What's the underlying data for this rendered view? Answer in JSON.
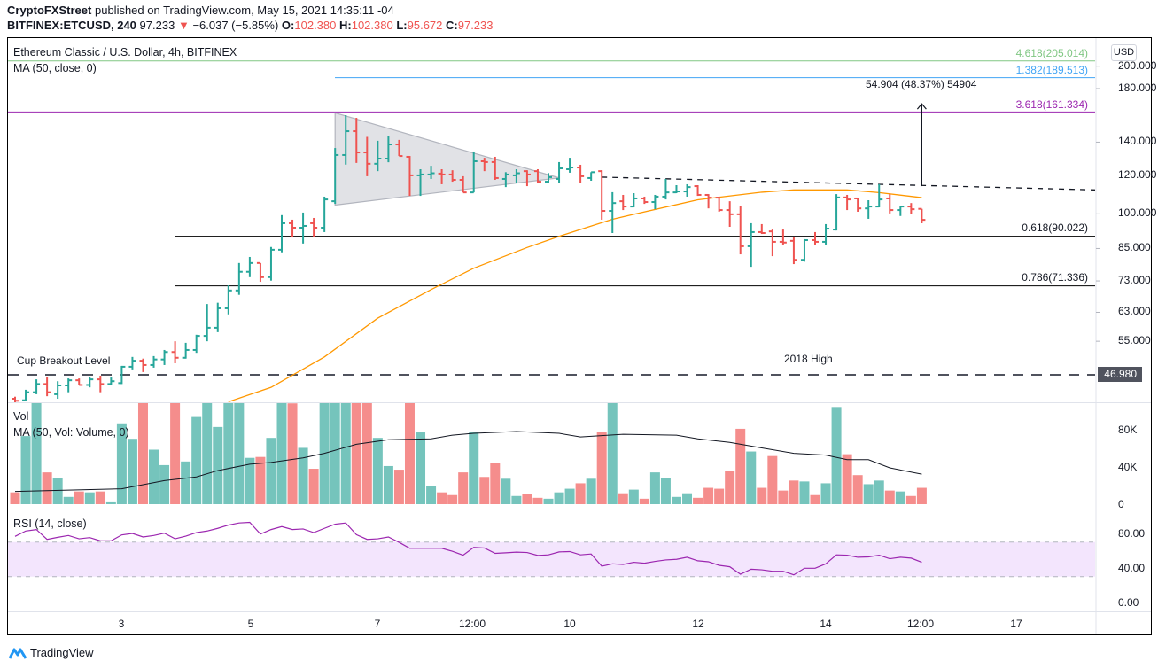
{
  "header": {
    "publisher": "CryptoFXStreet",
    "published_text": "published on TradingView.com, May 15, 2021 14:35:11 -04",
    "symbol": "BITFINEX:ETCUSD, 240",
    "last": "97.233",
    "change_arrow": "▼",
    "change": "−6.037 (−5.85%)",
    "o_label": "O:",
    "o": "102.380",
    "h_label": "H:",
    "h": "102.380",
    "l_label": "L:",
    "l": "95.672",
    "c_label": "C:",
    "c": "97.233"
  },
  "legend": {
    "title": "Ethereum Classic / U.S. Dollar, 4h, BITFINEX",
    "ma": "MA (50, close, 0)",
    "vol": "Vol",
    "vol_ma": "MA (50, Vol: Volume, 0)",
    "rsi": "RSI (14, close)"
  },
  "currency_button": "USD",
  "price_axis": [
    "200.000",
    "180.000",
    "140.000",
    "120.000",
    "100.000",
    "85.000",
    "73.000",
    "63.000",
    "55.000"
  ],
  "price_axis_values": [
    200,
    180,
    140,
    120,
    100,
    85,
    73,
    63,
    55
  ],
  "level_box": "46.980",
  "volume_axis": [
    "80K",
    "40K",
    "0"
  ],
  "rsi_axis": [
    "80.00",
    "40.00",
    "0.00"
  ],
  "time_axis": [
    "3",
    "5",
    "7",
    "12:00",
    "10",
    "12",
    "14",
    "12:00",
    "17"
  ],
  "annotations": {
    "cup_breakout": "Cup Breakout Level",
    "high_2018": "2018 High",
    "measure": "54.904 (48.37%) 54904",
    "fib": [
      {
        "label": "4.618(205.014)",
        "price": 205.014,
        "color": "#81c784"
      },
      {
        "label": "1.382(189.513)",
        "price": 189.513,
        "color": "#42a5f5"
      },
      {
        "label": "3.618(161.334)",
        "price": 161.334,
        "color": "#9c27b0"
      },
      {
        "label": "0.618(90.022)",
        "price": 90.022,
        "color": "#000000"
      },
      {
        "label": "0.786(71.336)",
        "price": 71.336,
        "color": "#000000"
      }
    ],
    "cup_level_price": 46.98
  },
  "colors": {
    "up": "#26a69a",
    "down": "#ef5350",
    "vol_up": "#75c4bc",
    "vol_down": "#f58d8c",
    "ma": "#ff9800",
    "rsi": "#9c27b0",
    "rsi_band": "#f3e5fd"
  },
  "footer": {
    "logo": "TradingView"
  },
  "chart_data": {
    "type": "ohlc",
    "scale": "log",
    "ohlc": [
      [
        42.0,
        42.4,
        41.1,
        41.6
      ],
      [
        41.7,
        43.8,
        41.5,
        43.3
      ],
      [
        43.3,
        46.0,
        42.9,
        45.0
      ],
      [
        45.0,
        46.6,
        42.5,
        43.3
      ],
      [
        42.9,
        45.6,
        42.0,
        44.7
      ],
      [
        44.7,
        46.2,
        43.3,
        45.8
      ],
      [
        45.8,
        46.2,
        44.7,
        44.8
      ],
      [
        44.8,
        46.6,
        44.3,
        46.0
      ],
      [
        46.0,
        46.8,
        43.3,
        45.0
      ],
      [
        45.0,
        46.4,
        44.7,
        45.6
      ],
      [
        45.2,
        49.0,
        45.0,
        48.8
      ],
      [
        48.8,
        51.1,
        48.2,
        50.2
      ],
      [
        50.2,
        50.7,
        47.6,
        49.2
      ],
      [
        49.2,
        51.3,
        48.6,
        50.5
      ],
      [
        50.5,
        52.8,
        49.2,
        52.3
      ],
      [
        52.3,
        55.0,
        49.6,
        50.9
      ],
      [
        50.9,
        54.6,
        50.7,
        52.8
      ],
      [
        52.8,
        56.7,
        52.1,
        56.4
      ],
      [
        56.4,
        65.5,
        55.0,
        58.6
      ],
      [
        58.6,
        65.9,
        57.4,
        64.2
      ],
      [
        64.2,
        71.5,
        62.4,
        69.8
      ],
      [
        69.8,
        79.4,
        68.4,
        76.2
      ],
      [
        76.2,
        81.7,
        74.3,
        79.4
      ],
      [
        79.4,
        79.4,
        72.7,
        74.3
      ],
      [
        74.3,
        85.6,
        73.1,
        84.5
      ],
      [
        84.5,
        99.4,
        83.5,
        95.7
      ],
      [
        95.7,
        97.3,
        89.5,
        93.7
      ],
      [
        93.7,
        100.6,
        87.0,
        94.5
      ],
      [
        95.7,
        98.1,
        89.9,
        93.7
      ],
      [
        93.7,
        108.4,
        91.8,
        107.0
      ],
      [
        106.1,
        136.2,
        104.8,
        131.8
      ],
      [
        131.8,
        158.9,
        126.0,
        147.4
      ],
      [
        147.4,
        156.9,
        127.0,
        133.4
      ],
      [
        133.4,
        143.5,
        119.3,
        126.5
      ],
      [
        126.5,
        140.9,
        122.2,
        129.6
      ],
      [
        129.6,
        144.3,
        127.4,
        138.5
      ],
      [
        138.5,
        141.5,
        131.2,
        131.2
      ],
      [
        130.7,
        131.2,
        108.8,
        119.8
      ],
      [
        119.8,
        123.3,
        108.8,
        120.3
      ],
      [
        120.3,
        125.3,
        117.8,
        121.0
      ],
      [
        120.8,
        123.3,
        114.9,
        120.3
      ],
      [
        120.3,
        122.7,
        116.3,
        117.3
      ],
      [
        117.3,
        119.3,
        110.6,
        110.6
      ],
      [
        110.6,
        134.0,
        110.6,
        128.0
      ],
      [
        128.0,
        130.1,
        122.2,
        127.5
      ],
      [
        127.5,
        130.7,
        117.3,
        118.3
      ],
      [
        117.8,
        121.6,
        113.4,
        120.3
      ],
      [
        119.8,
        123.3,
        115.4,
        121.0
      ],
      [
        122.2,
        122.7,
        113.9,
        120.3
      ],
      [
        122.2,
        123.3,
        115.4,
        116.3
      ],
      [
        116.3,
        121.1,
        115.8,
        118.8
      ],
      [
        117.8,
        127.5,
        115.4,
        123.8
      ],
      [
        123.3,
        130.1,
        121.3,
        124.3
      ],
      [
        124.3,
        125.9,
        115.8,
        119.3
      ],
      [
        118.3,
        121.6,
        116.8,
        121.6
      ],
      [
        122.2,
        122.7,
        97.3,
        101.4
      ],
      [
        101.4,
        110.7,
        91.4,
        105.2
      ],
      [
        106.1,
        109.3,
        101.8,
        103.5
      ],
      [
        103.5,
        110.2,
        103.1,
        107.5
      ],
      [
        107.5,
        108.4,
        104.8,
        105.7
      ],
      [
        105.7,
        109.3,
        102.2,
        108.4
      ],
      [
        108.4,
        117.8,
        107.0,
        110.6
      ],
      [
        110.6,
        114.4,
        110.2,
        111.1
      ],
      [
        111.1,
        114.9,
        108.4,
        113.4
      ],
      [
        113.9,
        114.4,
        108.8,
        109.3
      ],
      [
        109.3,
        109.7,
        102.6,
        107.9
      ],
      [
        107.9,
        108.4,
        101.0,
        101.8
      ],
      [
        101.8,
        106.1,
        94.1,
        99.8
      ],
      [
        99.8,
        103.9,
        82.7,
        85.9
      ],
      [
        85.9,
        95.7,
        78.0,
        91.8
      ],
      [
        91.8,
        95.3,
        91.0,
        91.4
      ],
      [
        92.1,
        92.9,
        82.0,
        87.7
      ],
      [
        87.7,
        92.9,
        86.6,
        87.4
      ],
      [
        88.1,
        89.9,
        79.0,
        80.6
      ],
      [
        80.6,
        88.8,
        79.9,
        88.4
      ],
      [
        88.4,
        91.8,
        86.6,
        87.7
      ],
      [
        87.7,
        95.3,
        86.6,
        93.3
      ],
      [
        92.9,
        109.7,
        92.5,
        108.0
      ],
      [
        108.0,
        109.3,
        101.8,
        107.0
      ],
      [
        107.5,
        107.9,
        101.0,
        102.6
      ],
      [
        102.6,
        106.6,
        97.7,
        103.5
      ],
      [
        103.5,
        114.9,
        103.1,
        107.0
      ],
      [
        107.5,
        109.7,
        100.2,
        101.8
      ],
      [
        101.8,
        103.9,
        99.0,
        103.5
      ],
      [
        103.5,
        105.2,
        99.8,
        102.2
      ],
      [
        102.38,
        102.38,
        95.672,
        97.233
      ]
    ],
    "ma50": [
      [
        21,
        41.4
      ],
      [
        25,
        44.3
      ],
      [
        30,
        51.1
      ],
      [
        35,
        61.3
      ],
      [
        40,
        70.1
      ],
      [
        44,
        77.5
      ],
      [
        49,
        85.4
      ],
      [
        52,
        90.0
      ],
      [
        57,
        97.5
      ],
      [
        59,
        99.8
      ],
      [
        65,
        106.8
      ],
      [
        71,
        110.7
      ],
      [
        74,
        111.9
      ],
      [
        79,
        111.9
      ],
      [
        82,
        110.5
      ],
      [
        86,
        107.9
      ]
    ],
    "volume": [
      13000,
      75000,
      130000,
      35000,
      29000,
      8000,
      14000,
      13000,
      14000,
      3000,
      89000,
      72000,
      130000,
      60000,
      43000,
      120000,
      47000,
      96000,
      125000,
      85000,
      140000,
      118000,
      51000,
      52000,
      73000,
      120000,
      111000,
      62000,
      39000,
      130000,
      150000,
      140000,
      130000,
      115000,
      73000,
      42000,
      38000,
      120000,
      79000,
      20000,
      13000,
      10000,
      35000,
      80000,
      30000,
      45000,
      28000,
      9000,
      11000,
      7000,
      6000,
      13000,
      17000,
      23000,
      28000,
      80000,
      115000,
      12000,
      16000,
      6000,
      35000,
      29000,
      8000,
      12000,
      7000,
      18000,
      17000,
      37000,
      83000,
      58000,
      18000,
      53000,
      15000,
      26000,
      25000,
      10000,
      23000,
      107000,
      55000,
      32000,
      22000,
      26000,
      15000,
      14000,
      9000,
      18000
    ],
    "volume_ma50": [
      [
        1,
        14000
      ],
      [
        11,
        17000
      ],
      [
        15,
        26000
      ],
      [
        18,
        30000
      ],
      [
        20,
        37000
      ],
      [
        23,
        44000
      ],
      [
        25,
        46000
      ],
      [
        28,
        51000
      ],
      [
        30,
        56000
      ],
      [
        33,
        66000
      ],
      [
        36,
        71000
      ],
      [
        40,
        72000
      ],
      [
        42,
        76000
      ],
      [
        44,
        78000
      ],
      [
        48,
        80000
      ],
      [
        52,
        78000
      ],
      [
        54,
        74000
      ],
      [
        58,
        77000
      ],
      [
        63,
        76000
      ],
      [
        65,
        72000
      ],
      [
        68,
        68000
      ],
      [
        71,
        62000
      ],
      [
        74,
        56000
      ],
      [
        77,
        54000
      ],
      [
        79,
        49000
      ],
      [
        81,
        49000
      ],
      [
        83,
        40000
      ],
      [
        86,
        33000
      ]
    ],
    "rsi": [
      76.6,
      82.8,
      84.5,
      73.1,
      75.5,
      77.6,
      73.8,
      75.2,
      71.4,
      71.4,
      78.3,
      80,
      75.9,
      77.6,
      80.3,
      73.8,
      76.9,
      81,
      82.8,
      85.9,
      89.7,
      92.1,
      92.8,
      79.3,
      84.5,
      87.9,
      84.5,
      85.2,
      81,
      85.9,
      90.7,
      92.1,
      78.6,
      73.1,
      73.8,
      75.9,
      69.7,
      62.8,
      62.8,
      62.8,
      62.8,
      59.3,
      54.8,
      63.8,
      63.1,
      56.9,
      57.6,
      58.3,
      57.9,
      54.5,
      55.2,
      58.6,
      59,
      55.2,
      56.2,
      42.1,
      44.8,
      44.1,
      46.6,
      45.5,
      47.6,
      49.3,
      50,
      52.4,
      48.3,
      47.2,
      43.1,
      41.4,
      32.8,
      38.6,
      37.9,
      36.2,
      36.2,
      32.1,
      39.7,
      39.7,
      44.8,
      55.2,
      54.8,
      52.4,
      52.8,
      54.8,
      50.7,
      52.4,
      51.4,
      46.6
    ],
    "rsi_band": [
      30,
      70
    ],
    "triangle": {
      "start_bar": 31,
      "end_bar": 52,
      "upper_start": 160.6,
      "lower_start": 104.2,
      "apex": 118.4
    },
    "resistance": {
      "start_bar": 56,
      "start_price": 118.8,
      "end_price": 111.9
    },
    "measure_arrow": {
      "bar": 86,
      "from": 113.9,
      "to": 167.6
    }
  }
}
